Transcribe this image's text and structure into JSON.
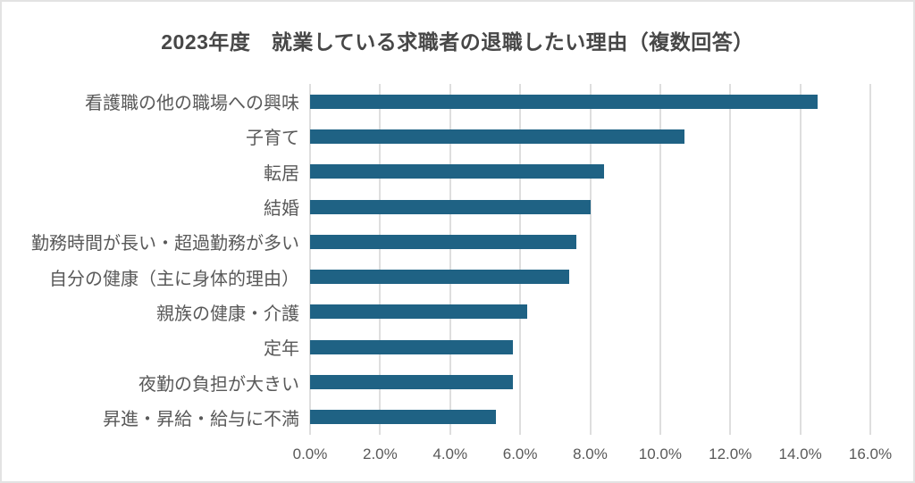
{
  "chart_data": {
    "type": "bar",
    "orientation": "horizontal",
    "title": "2023年度　就業している求職者の退職したい理由（複数回答）",
    "categories": [
      "看護職の他の職場への興味",
      "子育て",
      "転居",
      "結婚",
      "勤務時間が長い・超過勤務が多い",
      "自分の健康（主に身体的理由）",
      "親族の健康・介護",
      "定年",
      "夜勤の負担が大きい",
      "昇進・昇給・給与に不満"
    ],
    "values": [
      14.5,
      10.7,
      8.4,
      8.0,
      7.6,
      7.4,
      6.2,
      5.8,
      5.8,
      5.3
    ],
    "xlabel": "",
    "ylabel": "",
    "xlim": [
      0,
      16
    ],
    "x_ticks": [
      "0.0%",
      "2.0%",
      "4.0%",
      "6.0%",
      "8.0%",
      "10.0%",
      "12.0%",
      "14.0%",
      "16.0%"
    ],
    "x_tick_values": [
      0,
      2,
      4,
      6,
      8,
      10,
      12,
      14,
      16
    ],
    "grid": true,
    "legend": "none",
    "colors": {
      "bar": "#1F6284",
      "gridline": "#DEDEDE",
      "axis_line": "#DEDEDE",
      "tick_label": "#595959",
      "category_label": "#595959",
      "title": "#474747",
      "background": "#FFFFFF",
      "frame_border": "#E3E3E3"
    }
  }
}
